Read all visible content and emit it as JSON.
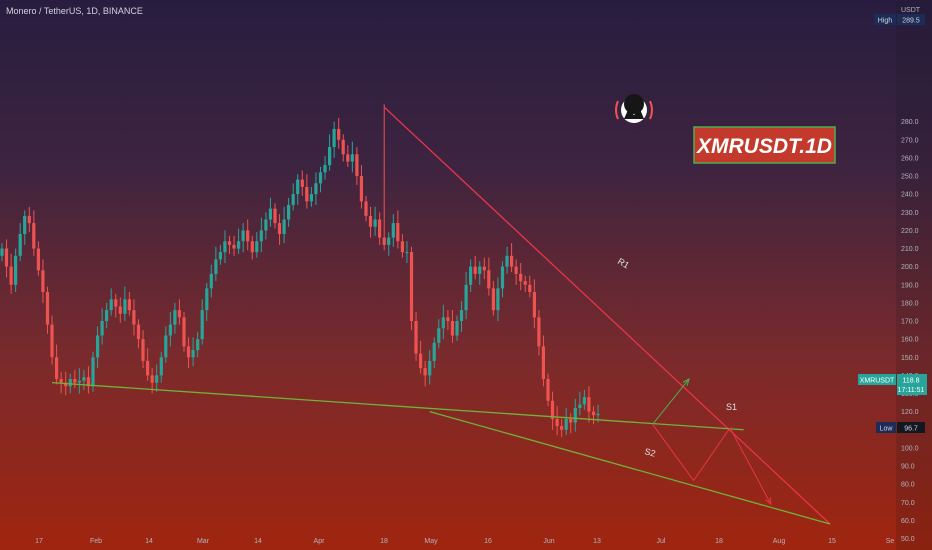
{
  "header": {
    "title": "Monero / TetherUS, 1D, BINANCE"
  },
  "price_axis": {
    "currency": "USDT",
    "high_label": "High",
    "high_value": "289.5",
    "low_label": "Low",
    "low_value": "96.7",
    "symbol_label": "XMRUSDT",
    "last_value": "118.8",
    "countdown": "17:11:51"
  },
  "watermark": {
    "text": "XMRUSDT.1D"
  },
  "annotations": {
    "r1": "R1",
    "s1": "S1",
    "s2": "S2"
  },
  "colors": {
    "up": "#26a69a",
    "down": "#ef5350",
    "resistance": "#e8344a",
    "support": "#6fb33a",
    "projection": "#e8344a",
    "projection_up": "#4caf50",
    "watermark_bg": "#c33a2c",
    "watermark_border": "#4caf50",
    "high_bg": "#1e2b56",
    "last_bg": "#26a69a"
  },
  "chart_data": {
    "type": "candlestick",
    "title": "Monero / TetherUS, 1D, BINANCE",
    "y_ticks": [
      50,
      60,
      70,
      80,
      90,
      100,
      110,
      120,
      130,
      140,
      150,
      160,
      170,
      180,
      190,
      200,
      210,
      220,
      230,
      240,
      250,
      260,
      270,
      280
    ],
    "x_ticks": [
      "17",
      "Feb",
      "14",
      "Mar",
      "14",
      "Apr",
      "18",
      "May",
      "16",
      "Jun",
      "13",
      "Jul",
      "18",
      "Aug",
      "15",
      "Se"
    ],
    "ylim": [
      47,
      292
    ],
    "high": 289.5,
    "low": 96.7,
    "last": 118.8,
    "closes": [
      210,
      200,
      190,
      206,
      218,
      228,
      224,
      210,
      198,
      186,
      168,
      150,
      138,
      136,
      134,
      138,
      136,
      137,
      139,
      134,
      150,
      162,
      170,
      176,
      182,
      178,
      174,
      182,
      176,
      168,
      160,
      148,
      140,
      136,
      140,
      150,
      162,
      168,
      176,
      172,
      156,
      150,
      154,
      160,
      176,
      188,
      196,
      204,
      208,
      214,
      212,
      210,
      214,
      220,
      214,
      208,
      214,
      220,
      226,
      232,
      224,
      218,
      226,
      234,
      240,
      248,
      244,
      236,
      240,
      246,
      252,
      256,
      266,
      276,
      270,
      262,
      258,
      262,
      250,
      236,
      228,
      222,
      226,
      216,
      212,
      216,
      224,
      214,
      208,
      208,
      170,
      152,
      144,
      140,
      148,
      158,
      166,
      172,
      170,
      162,
      170,
      176,
      190,
      200,
      196,
      200,
      198,
      188,
      176,
      188,
      200,
      206,
      200,
      196,
      192,
      190,
      186,
      172,
      156,
      138,
      126,
      116,
      112,
      110,
      116,
      114,
      122,
      124,
      128,
      120,
      118,
      118.8
    ],
    "resistance_r1": {
      "from": {
        "day": 84,
        "price": 288
      },
      "to": {
        "day": 182,
        "price": 58
      },
      "label": "R1"
    },
    "support_s1": {
      "from": {
        "day": 11,
        "price": 136
      },
      "to": {
        "day": 163,
        "price": 110
      },
      "label": "S1"
    },
    "support_s2": {
      "from": {
        "day": 94,
        "price": 120
      },
      "to": {
        "day": 182,
        "price": 58
      },
      "label": "S2"
    },
    "projection_up": [
      {
        "day": 143,
        "price": 113
      },
      {
        "day": 151,
        "price": 138
      }
    ],
    "projection_down": [
      {
        "day": 143,
        "price": 113
      },
      {
        "day": 152,
        "price": 82
      },
      {
        "day": 160,
        "price": 111
      },
      {
        "day": 169,
        "price": 69
      }
    ]
  }
}
